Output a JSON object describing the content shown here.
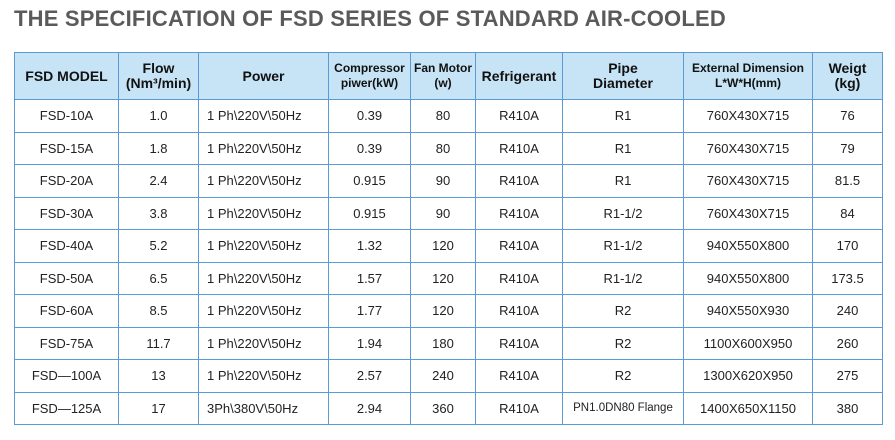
{
  "header": {
    "title": "THE SPECIFICATION OF FSD SERIES OF STANDARD AIR-COOLED"
  },
  "table": {
    "columns": [
      [
        "FSD MODEL"
      ],
      [
        "Flow",
        "(Nm³/min)"
      ],
      [
        "Power"
      ],
      [
        "Compressor",
        "piwer(kW)"
      ],
      [
        "Fan Motor",
        "(w)"
      ],
      [
        "Refrigerant"
      ],
      [
        "Pipe",
        "Diameter"
      ],
      [
        "External Dimension",
        "L*W*H(mm)"
      ],
      [
        "Weigt",
        "(kg)"
      ]
    ],
    "rows": [
      [
        "FSD-10A",
        "1.0",
        "1 Ph\\220V\\50Hz",
        "0.39",
        "80",
        "R410A",
        "R1",
        "760X430X715",
        "76"
      ],
      [
        "FSD-15A",
        "1.8",
        "1 Ph\\220V\\50Hz",
        "0.39",
        "80",
        "R410A",
        "R1",
        "760X430X715",
        "79"
      ],
      [
        "FSD-20A",
        "2.4",
        "1 Ph\\220V\\50Hz",
        "0.915",
        "90",
        "R410A",
        "R1",
        "760X430X715",
        "81.5"
      ],
      [
        "FSD-30A",
        "3.8",
        "1 Ph\\220V\\50Hz",
        "0.915",
        "90",
        "R410A",
        "R1-1/2",
        "760X430X715",
        "84"
      ],
      [
        "FSD-40A",
        "5.2",
        "1 Ph\\220V\\50Hz",
        "1.32",
        "120",
        "R410A",
        "R1-1/2",
        "940X550X800",
        "170"
      ],
      [
        "FSD-50A",
        "6.5",
        "1 Ph\\220V\\50Hz",
        "1.57",
        "120",
        "R410A",
        "R1-1/2",
        "940X550X800",
        "173.5"
      ],
      [
        "FSD-60A",
        "8.5",
        "1 Ph\\220V\\50Hz",
        "1.77",
        "120",
        "R410A",
        "R2",
        "940X550X930",
        "240"
      ],
      [
        "FSD-75A",
        "11.7",
        "1 Ph\\220V\\50Hz",
        "1.94",
        "180",
        "R410A",
        "R2",
        "1100X600X950",
        "260"
      ],
      [
        "FSD—100A",
        "13",
        "1 Ph\\220V\\50Hz",
        "2.57",
        "240",
        "R410A",
        "R2",
        "1300X620X950",
        "275"
      ],
      [
        "FSD—125A",
        "17",
        "3Ph\\380V\\50Hz",
        "2.94",
        "360",
        "R410A",
        "PN1.0DN80 Flange",
        "1400X650X1150",
        "380"
      ]
    ]
  }
}
